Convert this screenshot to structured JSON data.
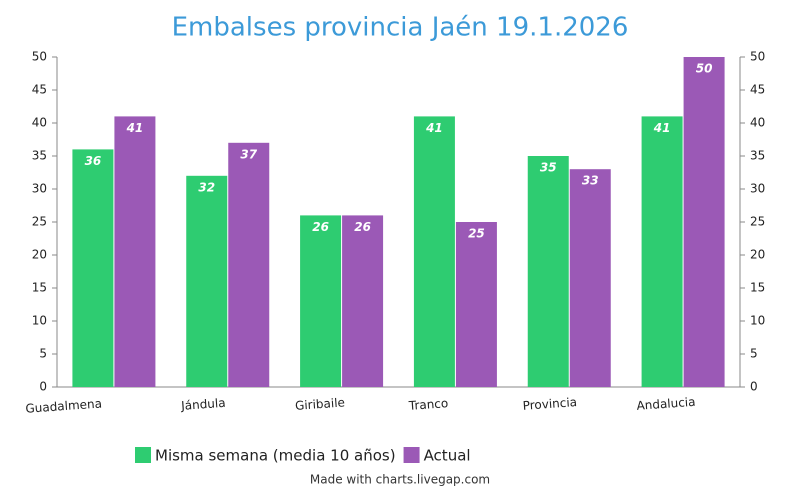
{
  "chart_data": {
    "type": "bar",
    "title": "Embalses provincia Jaén  19.1.2026",
    "categories": [
      "Guadalmena",
      "Jándula",
      "Giribaile",
      "Tranco",
      "Provincia",
      "Andalucia"
    ],
    "series": [
      {
        "name": "Misma semana (media 10 años)",
        "color": "#2ecc71",
        "values": [
          36,
          32,
          26,
          41,
          35,
          41
        ]
      },
      {
        "name": "Actual",
        "color": "#9b59b6",
        "values": [
          41,
          37,
          26,
          25,
          33,
          50
        ]
      }
    ],
    "ylim": [
      0,
      50
    ],
    "yticks": [
      0,
      5,
      10,
      15,
      20,
      25,
      30,
      35,
      40,
      45,
      50
    ],
    "y2lim": [
      0,
      50
    ],
    "y2ticks": [
      0,
      5,
      10,
      15,
      20,
      25,
      30,
      35,
      40,
      45,
      50
    ],
    "grid": false,
    "legend": "bottom",
    "footer": "Made with charts.livegap.com"
  }
}
